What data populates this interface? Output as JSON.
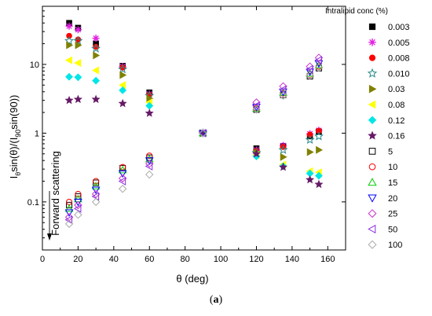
{
  "chart_data": {
    "type": "scatter",
    "title": "",
    "xlabel": "θ (deg)",
    "ylabel": "I_θ sin(θ)/(I_90 sin(90))",
    "ylabel_parts": {
      "a": "I",
      "b": "θ",
      "c": "sin(θ)/(I",
      "d": "90",
      "e": "sin(90))"
    },
    "x_range": [
      0,
      170
    ],
    "x_ticks": [
      0,
      20,
      40,
      60,
      80,
      100,
      120,
      140,
      160
    ],
    "y_scale": "log",
    "y_range": [
      0.02,
      70
    ],
    "y_ticks": [
      0.1,
      1,
      10
    ],
    "y_tick_labels": [
      "0.1",
      "1",
      "10"
    ],
    "grid": false,
    "legend_title": "Intralipid conc (%)",
    "legend_position": "right",
    "annotation": "Forward scattering",
    "series": [
      {
        "name": "0.003",
        "marker": "square-filled",
        "color": "#000000",
        "x": [
          15,
          20,
          30,
          45,
          60,
          90,
          120,
          135,
          150,
          155
        ],
        "y": [
          40,
          34,
          20,
          9.5,
          3.9,
          1,
          0.6,
          0.65,
          0.9,
          1.05
        ]
      },
      {
        "name": "0.005",
        "marker": "asterisk",
        "color": "#e020e0",
        "x": [
          15,
          20,
          30,
          45,
          60,
          90,
          120,
          135,
          150,
          155
        ],
        "y": [
          36,
          32,
          24,
          9.3,
          3.7,
          1,
          0.57,
          0.66,
          0.98,
          1.1
        ]
      },
      {
        "name": "0.008",
        "marker": "circle-filled",
        "color": "#ff0000",
        "x": [
          15,
          20,
          30,
          45,
          60,
          90,
          120,
          135,
          150,
          155
        ],
        "y": [
          26,
          23,
          18,
          9.0,
          3.6,
          1,
          0.55,
          0.63,
          0.95,
          1.08
        ]
      },
      {
        "name": "0.010",
        "marker": "star-outline",
        "color": "#2a8a8a",
        "x": [
          15,
          20,
          30,
          45,
          60,
          90,
          120,
          135,
          150,
          155
        ],
        "y": [
          22,
          22,
          17,
          8.5,
          3.5,
          1,
          0.52,
          0.57,
          0.8,
          0.9
        ]
      },
      {
        "name": "0.03",
        "marker": "tri-right-filled",
        "color": "#808000",
        "x": [
          15,
          20,
          30,
          45,
          60,
          90,
          120,
          135,
          150,
          155
        ],
        "y": [
          19,
          19,
          13.5,
          7.0,
          3.2,
          1,
          0.52,
          0.45,
          0.53,
          0.57
        ]
      },
      {
        "name": "0.08",
        "marker": "tri-left-filled",
        "color": "#ffff00",
        "x": [
          15,
          20,
          30,
          45,
          60,
          90,
          120,
          135,
          150,
          155
        ],
        "y": [
          11.5,
          10.5,
          8.2,
          5.0,
          2.8,
          1,
          0.48,
          0.35,
          0.28,
          0.27
        ]
      },
      {
        "name": "0.12",
        "marker": "diamond-filled",
        "color": "#00e5e5",
        "x": [
          15,
          20,
          30,
          45,
          60,
          90,
          120,
          135,
          150,
          155
        ],
        "y": [
          6.6,
          6.5,
          5.8,
          4.2,
          2.5,
          1,
          0.46,
          0.33,
          0.26,
          0.24
        ]
      },
      {
        "name": "0.16",
        "marker": "star-filled",
        "color": "#661a66",
        "x": [
          15,
          20,
          30,
          45,
          60,
          90,
          120,
          135,
          150,
          155
        ],
        "y": [
          3.0,
          3.1,
          3.1,
          2.7,
          1.95,
          1,
          0.5,
          0.32,
          0.21,
          0.18
        ]
      },
      {
        "name": "5",
        "marker": "square-open",
        "color": "#000000",
        "x": [
          15,
          20,
          30,
          45,
          60,
          90,
          120,
          135,
          150,
          155
        ],
        "y": [
          0.09,
          0.12,
          0.19,
          0.31,
          0.44,
          1,
          2.2,
          3.6,
          6.7,
          8.8
        ]
      },
      {
        "name": "10",
        "marker": "circle-open",
        "color": "#ff0000",
        "x": [
          15,
          20,
          30,
          45,
          60,
          90,
          120,
          135,
          150,
          155
        ],
        "y": [
          0.1,
          0.13,
          0.2,
          0.32,
          0.47,
          1,
          2.3,
          3.8,
          7.0,
          9.3
        ]
      },
      {
        "name": "15",
        "marker": "tri-up-open",
        "color": "#00cc00",
        "x": [
          15,
          20,
          30,
          45,
          60,
          90,
          120,
          135,
          150,
          155
        ],
        "y": [
          0.08,
          0.11,
          0.17,
          0.29,
          0.42,
          1,
          2.3,
          3.9,
          7.4,
          9.8
        ]
      },
      {
        "name": "20",
        "marker": "tri-down-open",
        "color": "#0000ff",
        "x": [
          15,
          20,
          30,
          45,
          60,
          90,
          120,
          135,
          150,
          155
        ],
        "y": [
          0.07,
          0.1,
          0.15,
          0.26,
          0.4,
          1,
          2.4,
          4.0,
          7.8,
          10.3
        ]
      },
      {
        "name": "25",
        "marker": "diamond-open",
        "color": "#cc33cc",
        "x": [
          15,
          20,
          30,
          45,
          60,
          90,
          120,
          135,
          150,
          155
        ],
        "y": [
          0.06,
          0.09,
          0.13,
          0.22,
          0.36,
          1,
          2.8,
          4.8,
          9.3,
          12.5
        ]
      },
      {
        "name": "50",
        "marker": "tri-left-open",
        "color": "#8a2be2",
        "x": [
          15,
          20,
          30,
          45,
          60,
          90,
          120,
          135,
          150,
          155
        ],
        "y": [
          0.055,
          0.08,
          0.12,
          0.2,
          0.33,
          1,
          2.5,
          4.3,
          8.5,
          11.5
        ]
      },
      {
        "name": "100",
        "marker": "diamond-open",
        "color": "#aaaaaa",
        "x": [
          15,
          20,
          30,
          45,
          60,
          90,
          120,
          135,
          150,
          155
        ],
        "y": [
          0.048,
          0.065,
          0.1,
          0.155,
          0.25,
          1,
          2.2,
          3.5,
          6.9,
          9.0
        ]
      }
    ]
  },
  "caption": {
    "open": "(",
    "label": "a",
    "close": ")"
  }
}
